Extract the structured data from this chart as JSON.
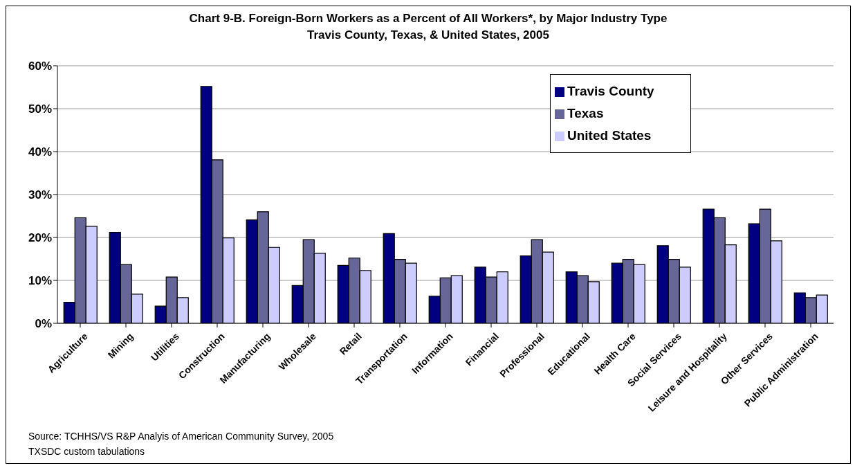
{
  "chart_data": {
    "type": "bar",
    "title": "Chart 9-B. Foreign-Born Workers as a Percent of All Workers*, by Major Industry Type",
    "subtitle": "Travis County, Texas, & United States, 2005",
    "categories": [
      "Agriculture",
      "Mining",
      "Utilities",
      "Construction",
      "Manufacturing",
      "Wholesale",
      "Retail",
      "Transportation",
      "Information",
      "Financial",
      "Professional",
      "Educational",
      "Health Care",
      "Social Services",
      "Leisure and Hospitality",
      "Other Services",
      "Public Administration"
    ],
    "series": [
      {
        "name": "Travis County",
        "color": "#000080",
        "values": [
          4.9,
          21.2,
          4.0,
          55.2,
          24.1,
          8.8,
          13.5,
          20.9,
          6.3,
          13.1,
          15.7,
          12.0,
          14.0,
          18.1,
          26.6,
          23.2,
          7.1
        ]
      },
      {
        "name": "Texas",
        "color": "#666699",
        "values": [
          24.6,
          13.7,
          10.8,
          38.1,
          26.0,
          19.5,
          15.2,
          14.9,
          10.6,
          10.8,
          19.5,
          11.1,
          14.9,
          14.9,
          24.6,
          26.6,
          6.0
        ]
      },
      {
        "name": "United States",
        "color": "#ccccff",
        "values": [
          22.6,
          6.8,
          6.0,
          19.9,
          17.7,
          16.3,
          12.3,
          14.0,
          11.1,
          12.0,
          16.6,
          9.7,
          13.7,
          13.1,
          18.3,
          19.2,
          6.6
        ]
      }
    ],
    "ylim": [
      0,
      60
    ],
    "yticks": [
      {
        "value": 0,
        "label": "0%"
      },
      {
        "value": 10,
        "label": "10%"
      },
      {
        "value": 20,
        "label": "20%"
      },
      {
        "value": 30,
        "label": "30%"
      },
      {
        "value": 40,
        "label": "40%"
      },
      {
        "value": 50,
        "label": "50%"
      },
      {
        "value": 60,
        "label": "60%"
      }
    ],
    "grid": "y",
    "legend": "top right",
    "annotations": [
      "Source: TCHHS/VS R&P Analyis of American Community Survey, 2005",
      "TXSDC custom tabulations"
    ]
  }
}
